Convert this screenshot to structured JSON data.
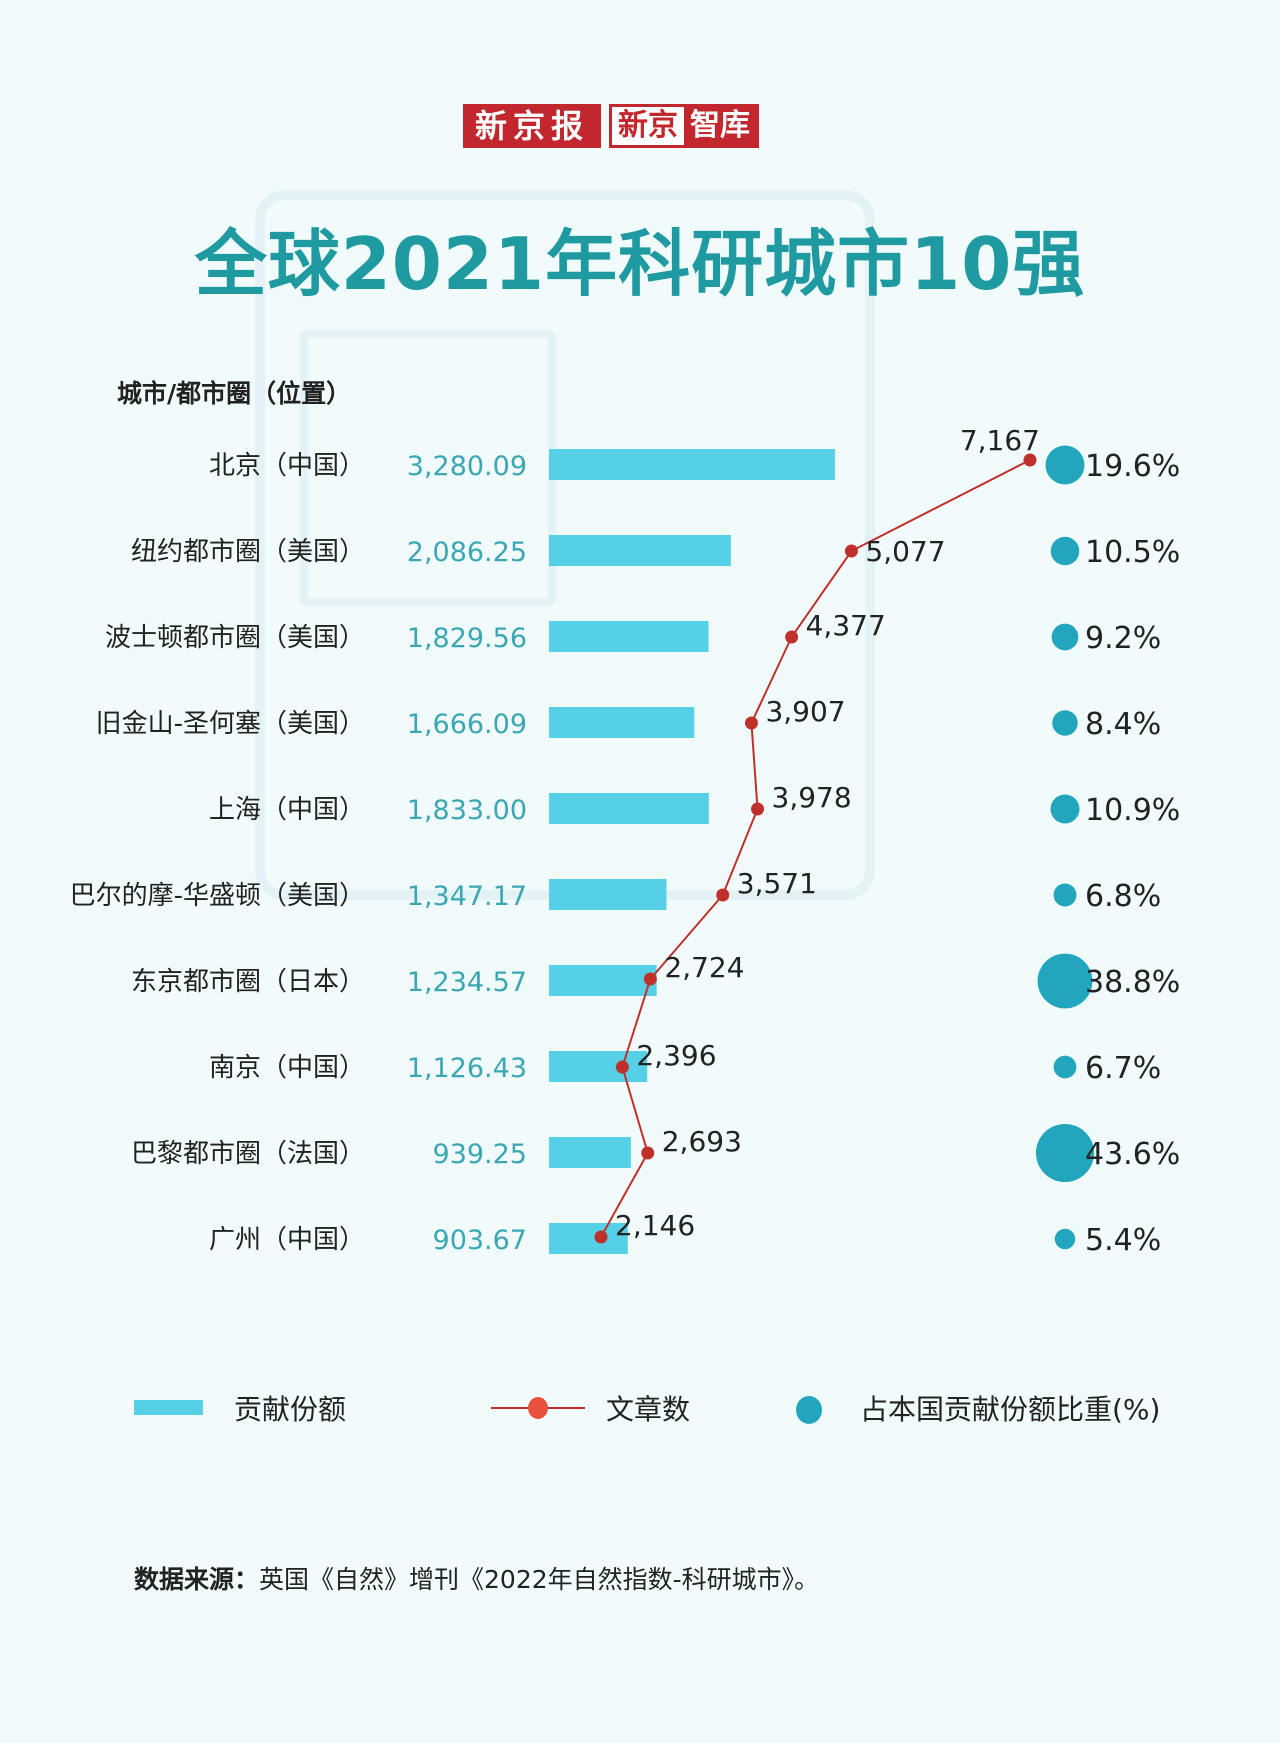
{
  "logo": {
    "part1": "新京报",
    "part2a": "新京",
    "part2b": "智库"
  },
  "title": "全球2021年科研城市10强",
  "chart_data": {
    "type": "bar",
    "title": "全球2021年科研城市10强",
    "category_header": "城市/都市圈（位置）",
    "categories": [
      "北京（中国）",
      "纽约都市圈（美国）",
      "波士顿都市圈（美国）",
      "旧金山-圣何塞（美国）",
      "上海（中国）",
      "巴尔的摩-华盛顿（美国）",
      "东京都市圈（日本）",
      "南京（中国）",
      "巴黎都市圈（法国）",
      "广州（中国）"
    ],
    "series": [
      {
        "name": "贡献份额",
        "type": "bar",
        "color": "#55d0e6",
        "values": [
          3280.09,
          2086.25,
          1829.56,
          1666.09,
          1833.0,
          1347.17,
          1234.57,
          1126.43,
          939.25,
          903.67
        ],
        "labels": [
          "3,280.09",
          "2,086.25",
          "1,829.56",
          "1,666.09",
          "1,833.00",
          "1,347.17",
          "1,234.57",
          "1,126.43",
          "939.25",
          "903.67"
        ]
      },
      {
        "name": "文章数",
        "type": "line",
        "color": "#c0302a",
        "values": [
          7167,
          5077,
          4377,
          3907,
          3978,
          3571,
          2724,
          2396,
          2693,
          2146
        ],
        "labels": [
          "7,167",
          "5,077",
          "4,377",
          "3,907",
          "3,978",
          "3,571",
          "2,724",
          "2,396",
          "2,693",
          "2,146"
        ]
      },
      {
        "name": "占本国贡献份额比重(%)",
        "type": "bubble",
        "color": "#22a6bd",
        "values": [
          19.6,
          10.5,
          9.2,
          8.4,
          10.9,
          6.8,
          38.8,
          6.7,
          43.6,
          5.4
        ],
        "labels": [
          "19.6%",
          "10.5%",
          "9.2%",
          "8.4%",
          "10.9%",
          "6.8%",
          "38.8%",
          "6.7%",
          "43.6%",
          "5.4%"
        ]
      }
    ],
    "legend": "bottom",
    "grid": false
  },
  "source": {
    "label": "数据来源：",
    "text": "英国《自然》增刊《2022年自然指数-科研城市》。"
  }
}
